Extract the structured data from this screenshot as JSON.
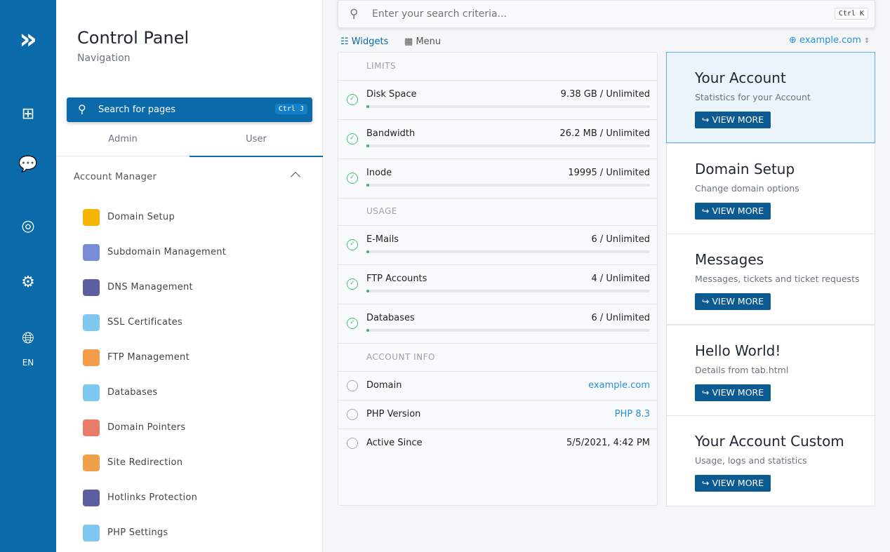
{
  "rail": {
    "lang": "EN"
  },
  "nav": {
    "title": "Control Panel",
    "subtitle": "Navigation",
    "search_placeholder": "Search for pages",
    "search_shortcut": "Ctrl J",
    "tabs": [
      "Admin",
      "User"
    ],
    "active_tab": "User",
    "group": "Account Manager",
    "items": [
      {
        "label": "Domain Setup",
        "color": "#f5b400"
      },
      {
        "label": "Subdomain Management",
        "color": "#7a8bd8"
      },
      {
        "label": "DNS Management",
        "color": "#5b5f9e"
      },
      {
        "label": "SSL Certificates",
        "color": "#7ec8f0"
      },
      {
        "label": "FTP Management",
        "color": "#f39c4a"
      },
      {
        "label": "Databases",
        "color": "#7ec8f0"
      },
      {
        "label": "Domain Pointers",
        "color": "#e87b6a"
      },
      {
        "label": "Site Redirection",
        "color": "#f0a04b"
      },
      {
        "label": "Hotlinks Protection",
        "color": "#5b5f9e"
      },
      {
        "label": "PHP Settings",
        "color": "#7ec8f0"
      }
    ]
  },
  "search": {
    "placeholder": "Enter your search criteria...",
    "shortcut": "Ctrl K"
  },
  "views": {
    "widgets": "Widgets",
    "menu": "Menu",
    "domain": "example.com"
  },
  "limits": {
    "title": "LIMITS",
    "rows": [
      {
        "label": "Disk Space",
        "value": "9.38 GB / Unlimited",
        "pct": 1
      },
      {
        "label": "Bandwidth",
        "value": "26.2 MB / Unlimited",
        "pct": 1
      },
      {
        "label": "Inode",
        "value": "19995 / Unlimited",
        "pct": 1
      }
    ]
  },
  "usage": {
    "title": "USAGE",
    "rows": [
      {
        "label": "E-Mails",
        "value": "6 / Unlimited",
        "pct": 1
      },
      {
        "label": "FTP Accounts",
        "value": "4 / Unlimited",
        "pct": 1
      },
      {
        "label": "Databases",
        "value": "6 / Unlimited",
        "pct": 1
      }
    ]
  },
  "info": {
    "title": "ACCOUNT INFO",
    "rows": [
      {
        "label": "Domain",
        "value": "example.com"
      },
      {
        "label": "PHP Version",
        "value": "PHP 8.3"
      },
      {
        "label": "Active Since",
        "value": "5/5/2021, 4:42 PM"
      }
    ]
  },
  "cards": [
    {
      "title": "Your Account",
      "desc": "Statistics for your Account",
      "button": "VIEW MORE"
    },
    {
      "title": "Domain Setup",
      "desc": "Change domain options",
      "button": "VIEW MORE"
    },
    {
      "title": "Messages",
      "desc": "Messages, tickets and ticket requests",
      "button": "VIEW MORE"
    },
    {
      "title": "Hello World!",
      "desc": "Details from tab.html",
      "button": "VIEW MORE"
    },
    {
      "title": "Your Account Custom",
      "desc": "Usage, logs and statistics",
      "button": "VIEW MORE"
    }
  ],
  "colors": {
    "brand": "#0b6aa9",
    "success": "#48c27a",
    "link": "#2a8fd8"
  }
}
